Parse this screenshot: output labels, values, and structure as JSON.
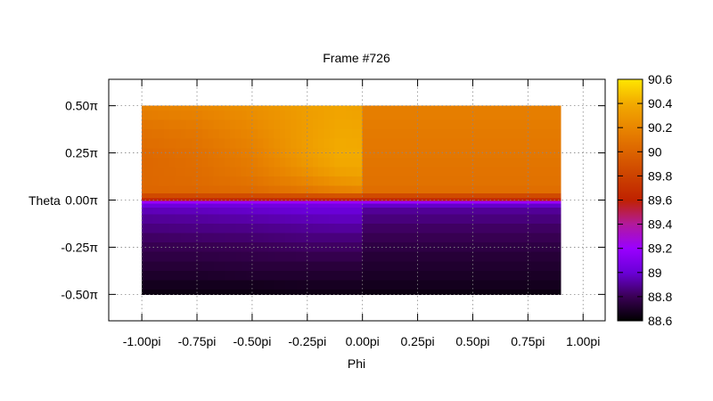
{
  "chart_data": {
    "type": "heatmap",
    "title": "Frame #726",
    "xlabel": "Phi",
    "ylabel": "Theta",
    "xlim": [
      -1.15,
      1.1
    ],
    "ylim": [
      -0.64,
      0.64
    ],
    "x_ticks": [
      {
        "value": -1.0,
        "label": "-1.00pi"
      },
      {
        "value": -0.75,
        "label": "-0.75pi"
      },
      {
        "value": -0.5,
        "label": "-0.50pi"
      },
      {
        "value": -0.25,
        "label": "-0.25pi"
      },
      {
        "value": 0.0,
        "label": "0.00pi"
      },
      {
        "value": 0.25,
        "label": "0.25pi"
      },
      {
        "value": 0.5,
        "label": "0.50pi"
      },
      {
        "value": 0.75,
        "label": "0.75pi"
      },
      {
        "value": 1.0,
        "label": "1.00pi"
      }
    ],
    "y_ticks": [
      {
        "value": 0.5,
        "label": "0.50π"
      },
      {
        "value": 0.25,
        "label": "0.25π"
      },
      {
        "value": 0.0,
        "label": "0.00π"
      },
      {
        "value": -0.25,
        "label": "-0.25π"
      },
      {
        "value": -0.5,
        "label": "-0.50π"
      }
    ],
    "grid": true,
    "data_extent": {
      "phi": [
        -1.0,
        0.9
      ],
      "theta": [
        -0.5,
        0.5
      ]
    },
    "colorbar": {
      "range": [
        88.6,
        90.6
      ],
      "ticks": [
        {
          "value": 90.6,
          "label": "90.6"
        },
        {
          "value": 90.4,
          "label": "90.4"
        },
        {
          "value": 90.2,
          "label": "90.2"
        },
        {
          "value": 90.0,
          "label": "90"
        },
        {
          "value": 89.8,
          "label": "89.8"
        },
        {
          "value": 89.6,
          "label": "89.6"
        },
        {
          "value": 89.4,
          "label": "89.4"
        },
        {
          "value": 89.2,
          "label": "89.2"
        },
        {
          "value": 89.0,
          "label": "89"
        },
        {
          "value": 88.8,
          "label": "88.8"
        },
        {
          "value": 88.6,
          "label": "88.6"
        }
      ],
      "stops": [
        {
          "value": 88.6,
          "color": "#000000"
        },
        {
          "value": 88.8,
          "color": "#3a0055"
        },
        {
          "value": 89.0,
          "color": "#6a00d8"
        },
        {
          "value": 89.2,
          "color": "#9a00ff"
        },
        {
          "value": 89.4,
          "color": "#b21a9c"
        },
        {
          "value": 89.6,
          "color": "#c02200"
        },
        {
          "value": 89.8,
          "color": "#cc4200"
        },
        {
          "value": 90.0,
          "color": "#dc6400"
        },
        {
          "value": 90.2,
          "color": "#e98600"
        },
        {
          "value": 90.4,
          "color": "#f2aa00"
        },
        {
          "value": 90.6,
          "color": "#ffe600"
        }
      ]
    },
    "field": {
      "theta": [
        0.5,
        0.45,
        0.4,
        0.35,
        0.3,
        0.25,
        0.2,
        0.15,
        0.1,
        0.05,
        0.02,
        0.0,
        -0.01,
        -0.03,
        -0.05,
        -0.1,
        -0.15,
        -0.2,
        -0.25,
        -0.3,
        -0.35,
        -0.4,
        -0.45,
        -0.5
      ],
      "left_region": {
        "phi": [
          -1.0,
          -0.75,
          -0.5,
          -0.25,
          -0.1,
          0.0
        ],
        "values": [
          [
            90.17,
            90.2,
            90.26,
            90.34,
            90.37,
            90.35
          ],
          [
            90.14,
            90.17,
            90.24,
            90.33,
            90.37,
            90.36
          ],
          [
            90.1,
            90.14,
            90.22,
            90.33,
            90.38,
            90.37
          ],
          [
            90.07,
            90.11,
            90.2,
            90.33,
            90.39,
            90.38
          ],
          [
            90.05,
            90.09,
            90.18,
            90.33,
            90.4,
            90.39
          ],
          [
            90.03,
            90.07,
            90.16,
            90.32,
            90.4,
            90.4
          ],
          [
            90.02,
            90.06,
            90.14,
            90.3,
            90.39,
            90.39
          ],
          [
            90.02,
            90.05,
            90.12,
            90.26,
            90.35,
            90.36
          ],
          [
            90.02,
            90.04,
            90.09,
            90.2,
            90.28,
            90.3
          ],
          [
            90.01,
            90.02,
            90.05,
            90.12,
            90.18,
            90.2
          ],
          [
            89.85,
            89.85,
            89.86,
            89.88,
            89.9,
            89.9
          ],
          [
            89.6,
            89.6,
            89.6,
            89.6,
            89.6,
            89.6
          ],
          [
            89.2,
            89.2,
            89.2,
            89.2,
            89.2,
            89.2
          ],
          [
            89.02,
            89.02,
            89.03,
            89.04,
            89.05,
            89.05
          ],
          [
            88.95,
            88.96,
            88.98,
            89.0,
            89.0,
            89.0
          ],
          [
            88.9,
            88.91,
            88.93,
            88.95,
            88.96,
            88.96
          ],
          [
            88.86,
            88.87,
            88.88,
            88.9,
            88.91,
            88.91
          ],
          [
            88.82,
            88.83,
            88.84,
            88.86,
            88.86,
            88.86
          ],
          [
            88.79,
            88.79,
            88.8,
            88.82,
            88.82,
            88.82
          ],
          [
            88.76,
            88.76,
            88.77,
            88.78,
            88.78,
            88.78
          ],
          [
            88.73,
            88.73,
            88.74,
            88.74,
            88.74,
            88.74
          ],
          [
            88.7,
            88.7,
            88.71,
            88.71,
            88.71,
            88.71
          ],
          [
            88.67,
            88.67,
            88.67,
            88.68,
            88.68,
            88.68
          ],
          [
            88.64,
            88.64,
            88.64,
            88.65,
            88.65,
            88.65
          ]
        ]
      },
      "right_region": {
        "phi_range": [
          0.0,
          0.9
        ],
        "values": [
          90.16,
          90.15,
          90.14,
          90.13,
          90.12,
          90.11,
          90.1,
          90.09,
          90.08,
          90.06,
          89.85,
          89.6,
          89.2,
          88.98,
          88.9,
          88.86,
          88.82,
          88.79,
          88.76,
          88.73,
          88.71,
          88.69,
          88.67,
          88.64
        ]
      }
    }
  }
}
